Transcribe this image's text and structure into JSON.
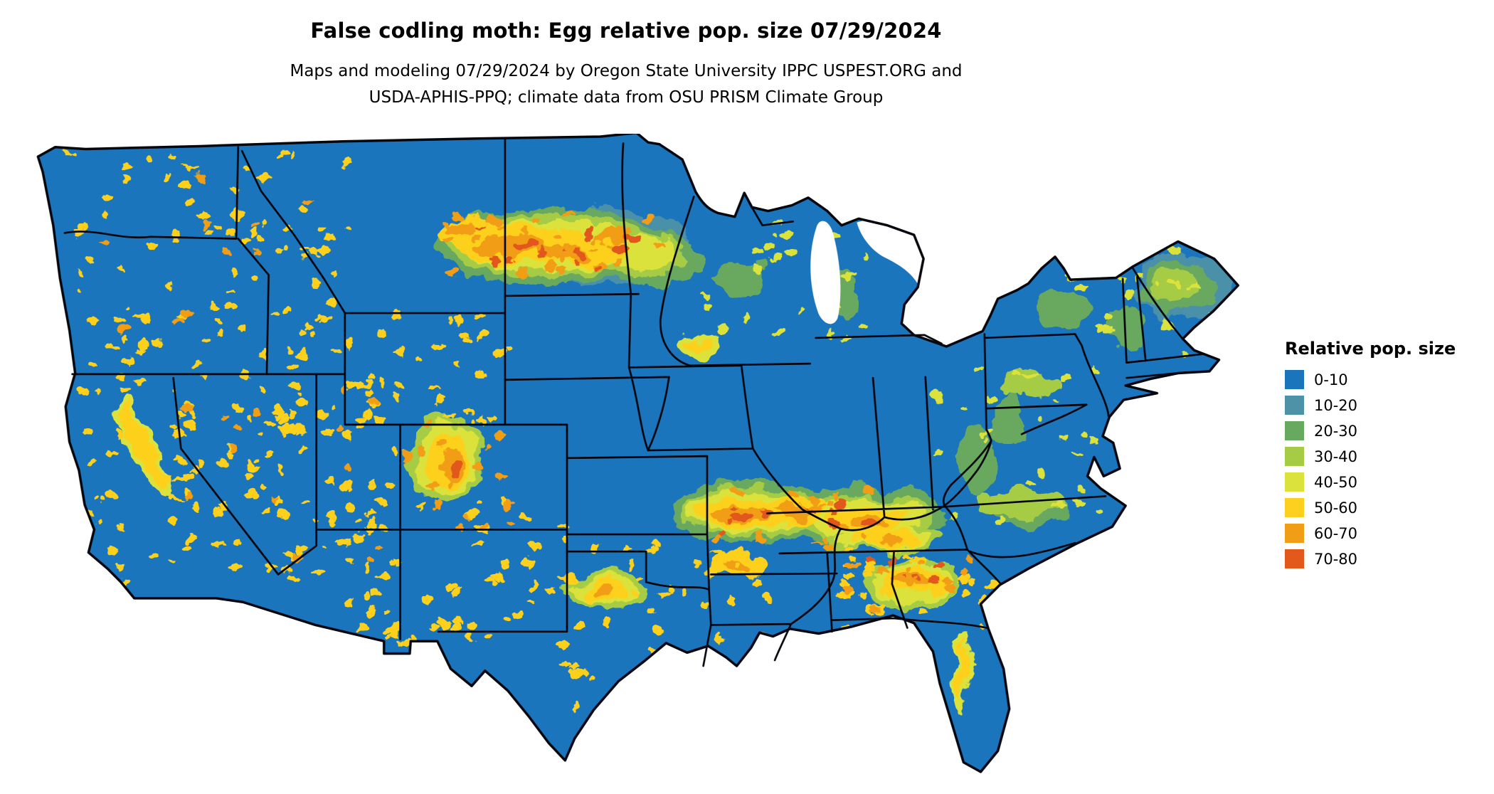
{
  "header": {
    "title": "False codling moth: Egg relative pop. size 07/29/2024",
    "subtitle_line1": "Maps and modeling 07/29/2024 by Oregon State University IPPC USPEST.ORG and",
    "subtitle_line2": "USDA-APHIS-PPQ; climate data from OSU PRISM Climate Group"
  },
  "legend": {
    "title": "Relative pop. size",
    "items": [
      {
        "label": "0-10",
        "color": "#1b75bc"
      },
      {
        "label": "10-20",
        "color": "#4e92a7"
      },
      {
        "label": "20-30",
        "color": "#67a95e"
      },
      {
        "label": "30-40",
        "color": "#a6cb45"
      },
      {
        "label": "40-50",
        "color": "#dbe23b"
      },
      {
        "label": "50-60",
        "color": "#fdd01f"
      },
      {
        "label": "60-70",
        "color": "#f19d15"
      },
      {
        "label": "70-80",
        "color": "#e2591b"
      }
    ]
  },
  "map": {
    "description": "Contiguous United States map, false codling moth egg relative population size, mostly 0-10 (blue) with yellow-orange hotspots",
    "base_color": "#1b75bc",
    "border_color": "#06060e"
  }
}
